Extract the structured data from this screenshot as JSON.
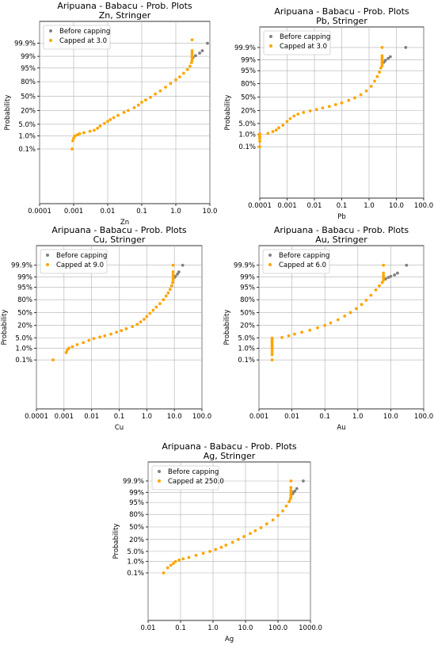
{
  "colors": {
    "before": "#808080",
    "capped": "#FFA500",
    "grid": "#b0b0b0",
    "axes": "#000000",
    "legend_border": "#cccccc"
  },
  "chart_data": [
    {
      "type": "scatter",
      "title": "Aripuana - Babacu - Prob. Plots",
      "subtitle": "Zn, Stringer",
      "xlabel": "Zn",
      "ylabel": "Probability",
      "xscale": "log",
      "xlim": [
        0.0001,
        10.0
      ],
      "xticks": [
        "0.0001",
        "0.001",
        "0.01",
        "0.1",
        "1.0",
        "10.0"
      ],
      "yscale": "probability",
      "yticks": [
        "0.1%",
        "1.0%",
        "5.0%",
        "20%",
        "50%",
        "80%",
        "95%",
        "99%",
        "99.9%"
      ],
      "grid": true,
      "legend": {
        "position": "top-left",
        "entries": [
          "Before capping",
          "Capped at 3.0"
        ]
      },
      "cap": 3.0,
      "series": [
        {
          "name": "Before capping",
          "points": [
            [
              3.2,
              98.8
            ],
            [
              3.8,
              99.1
            ],
            [
              5.0,
              99.4
            ],
            [
              6.0,
              99.6
            ],
            [
              8.5,
              99.9
            ]
          ]
        },
        {
          "name": "Capped at 3.0",
          "points": [
            [
              0.0009,
              0.1
            ],
            [
              0.00095,
              0.45
            ],
            [
              0.001,
              0.7
            ],
            [
              0.0011,
              1.0
            ],
            [
              0.0013,
              1.2
            ],
            [
              0.0015,
              1.4
            ],
            [
              0.002,
              1.6
            ],
            [
              0.003,
              2.0
            ],
            [
              0.004,
              2.3
            ],
            [
              0.005,
              3.0
            ],
            [
              0.006,
              4.0
            ],
            [
              0.008,
              5.5
            ],
            [
              0.01,
              7.0
            ],
            [
              0.012,
              8.5
            ],
            [
              0.015,
              10.5
            ],
            [
              0.02,
              13.0
            ],
            [
              0.03,
              17.0
            ],
            [
              0.04,
              20.0
            ],
            [
              0.06,
              25.0
            ],
            [
              0.08,
              30.0
            ],
            [
              0.1,
              36.0
            ],
            [
              0.13,
              41.0
            ],
            [
              0.18,
              47.0
            ],
            [
              0.25,
              55.0
            ],
            [
              0.35,
              62.0
            ],
            [
              0.5,
              70.0
            ],
            [
              0.7,
              77.0
            ],
            [
              1.0,
              83.0
            ],
            [
              1.3,
              87.0
            ],
            [
              1.7,
              91.0
            ],
            [
              2.2,
              94.0
            ],
            [
              2.6,
              96.0
            ],
            [
              2.9,
              97.5
            ],
            [
              3.0,
              98.2
            ],
            [
              3.0,
              98.8
            ],
            [
              3.0,
              99.1
            ],
            [
              3.0,
              99.4
            ],
            [
              3.0,
              99.6
            ],
            [
              3.0,
              99.95
            ]
          ]
        }
      ]
    },
    {
      "type": "scatter",
      "title": "Aripuana - Babacu - Prob. Plots",
      "subtitle": "Pb, Stringer",
      "xlabel": "Pb",
      "ylabel": "Probability",
      "xscale": "log",
      "xlim": [
        0.0001,
        100.0
      ],
      "xticks": [
        "0.0001",
        "0.001",
        "0.01",
        "0.1",
        "1.0",
        "10.0",
        "100.0"
      ],
      "yscale": "probability",
      "yticks": [
        "0.1%",
        "1.0%",
        "5.0%",
        "20%",
        "50%",
        "80%",
        "95%",
        "99%",
        "99.9%"
      ],
      "grid": true,
      "legend": {
        "position": "top-left",
        "entries": [
          "Before capping",
          "Capped at 3.0"
        ]
      },
      "cap": 3.0,
      "series": [
        {
          "name": "Before capping",
          "points": [
            [
              3.5,
              98.5
            ],
            [
              4.0,
              98.9
            ],
            [
              5.0,
              99.2
            ],
            [
              6.0,
              99.4
            ],
            [
              22.0,
              99.9
            ]
          ]
        },
        {
          "name": "Capped at 3.0",
          "points": [
            [
              0.0001,
              0.1
            ],
            [
              0.0001,
              0.3
            ],
            [
              0.0001,
              0.5
            ],
            [
              0.0001,
              0.7
            ],
            [
              0.0001,
              0.9
            ],
            [
              0.0001,
              1.1
            ],
            [
              0.0002,
              1.2
            ],
            [
              0.0003,
              1.6
            ],
            [
              0.0004,
              2.0
            ],
            [
              0.0005,
              2.8
            ],
            [
              0.0007,
              4.0
            ],
            [
              0.001,
              6.5
            ],
            [
              0.0013,
              9.0
            ],
            [
              0.0018,
              12.0
            ],
            [
              0.0025,
              14.5
            ],
            [
              0.004,
              17.0
            ],
            [
              0.007,
              19.5
            ],
            [
              0.012,
              22.0
            ],
            [
              0.02,
              25.0
            ],
            [
              0.035,
              28.0
            ],
            [
              0.06,
              32.0
            ],
            [
              0.1,
              36.0
            ],
            [
              0.18,
              42.0
            ],
            [
              0.3,
              48.0
            ],
            [
              0.5,
              56.0
            ],
            [
              0.8,
              65.0
            ],
            [
              1.2,
              75.0
            ],
            [
              1.6,
              84.0
            ],
            [
              2.0,
              90.0
            ],
            [
              2.4,
              94.0
            ],
            [
              2.7,
              96.5
            ],
            [
              3.0,
              97.5
            ],
            [
              3.0,
              98.2
            ],
            [
              3.0,
              98.6
            ],
            [
              3.0,
              99.0
            ],
            [
              3.0,
              99.3
            ],
            [
              3.0,
              99.5
            ],
            [
              3.0,
              99.9
            ]
          ]
        }
      ]
    },
    {
      "type": "scatter",
      "title": "Aripuana - Babacu - Prob. Plots",
      "subtitle": "Cu, Stringer",
      "xlabel": "Cu",
      "ylabel": "Probability",
      "xscale": "log",
      "xlim": [
        0.0001,
        100.0
      ],
      "xticks": [
        "0.0001",
        "0.001",
        "0.01",
        "0.1",
        "1.0",
        "10.0",
        "100.0"
      ],
      "yscale": "probability",
      "yticks": [
        "0.1%",
        "1.0%",
        "5.0%",
        "20%",
        "50%",
        "80%",
        "95%",
        "99%",
        "99.9%"
      ],
      "grid": true,
      "legend": {
        "position": "top-left",
        "entries": [
          "Before capping",
          "Capped at 9.0"
        ]
      },
      "cap": 9.0,
      "series": [
        {
          "name": "Before capping",
          "points": [
            [
              10.0,
              98.9
            ],
            [
              11.0,
              99.1
            ],
            [
              13.0,
              99.4
            ],
            [
              14.5,
              99.6
            ],
            [
              20.0,
              99.9
            ]
          ]
        },
        {
          "name": "Capped at 9.0",
          "points": [
            [
              0.0004,
              0.1
            ],
            [
              0.0012,
              0.45
            ],
            [
              0.0013,
              0.7
            ],
            [
              0.0015,
              1.0
            ],
            [
              0.002,
              1.3
            ],
            [
              0.003,
              1.8
            ],
            [
              0.005,
              2.5
            ],
            [
              0.008,
              3.5
            ],
            [
              0.012,
              4.5
            ],
            [
              0.02,
              5.5
            ],
            [
              0.03,
              6.5
            ],
            [
              0.05,
              8.0
            ],
            [
              0.08,
              10.0
            ],
            [
              0.12,
              12.0
            ],
            [
              0.18,
              14.5
            ],
            [
              0.3,
              18.0
            ],
            [
              0.45,
              22.0
            ],
            [
              0.6,
              27.0
            ],
            [
              0.8,
              33.0
            ],
            [
              1.0,
              40.0
            ],
            [
              1.3,
              48.0
            ],
            [
              1.7,
              56.0
            ],
            [
              2.2,
              64.0
            ],
            [
              3.0,
              72.0
            ],
            [
              4.0,
              80.0
            ],
            [
              5.0,
              86.0
            ],
            [
              6.0,
              90.0
            ],
            [
              7.0,
              93.5
            ],
            [
              8.0,
              96.0
            ],
            [
              8.7,
              97.5
            ],
            [
              9.0,
              98.4
            ],
            [
              9.0,
              98.9
            ],
            [
              9.0,
              99.3
            ],
            [
              9.0,
              99.6
            ],
            [
              9.0,
              99.9
            ]
          ]
        }
      ]
    },
    {
      "type": "scatter",
      "title": "Aripuana - Babacu - Prob. Plots",
      "subtitle": "Au, Stringer",
      "xlabel": "Au",
      "ylabel": "Probability",
      "xscale": "log",
      "xlim": [
        0.001,
        100.0
      ],
      "xticks": [
        "0.001",
        "0.01",
        "0.1",
        "1.0",
        "10.0",
        "100.0"
      ],
      "yscale": "probability",
      "yticks": [
        "0.1%",
        "1.0%",
        "5.0%",
        "20%",
        "50%",
        "80%",
        "95%",
        "99%",
        "99.9%"
      ],
      "grid": true,
      "legend": {
        "position": "top-left",
        "entries": [
          "Before capping",
          "Capped at 6.0"
        ]
      },
      "cap": 6.0,
      "series": [
        {
          "name": "Before capping",
          "points": [
            [
              7.0,
              98.6
            ],
            [
              8.5,
              98.9
            ],
            [
              10.0,
              99.1
            ],
            [
              13.0,
              99.3
            ],
            [
              16.0,
              99.5
            ],
            [
              30.0,
              99.9
            ]
          ]
        },
        {
          "name": "Capped at 6.0",
          "points": [
            [
              0.0025,
              0.1
            ],
            [
              0.0025,
              0.3
            ],
            [
              0.0025,
              0.5
            ],
            [
              0.0025,
              0.8
            ],
            [
              0.0025,
              1.1
            ],
            [
              0.0025,
              1.5
            ],
            [
              0.0025,
              2.0
            ],
            [
              0.0025,
              2.6
            ],
            [
              0.0025,
              3.2
            ],
            [
              0.0025,
              4.0
            ],
            [
              0.0025,
              4.8
            ],
            [
              0.005,
              5.2
            ],
            [
              0.008,
              6.5
            ],
            [
              0.012,
              8.0
            ],
            [
              0.02,
              10.0
            ],
            [
              0.035,
              12.5
            ],
            [
              0.06,
              16.0
            ],
            [
              0.1,
              20.0
            ],
            [
              0.15,
              25.0
            ],
            [
              0.25,
              32.0
            ],
            [
              0.4,
              41.0
            ],
            [
              0.6,
              50.0
            ],
            [
              0.9,
              60.0
            ],
            [
              1.3,
              70.0
            ],
            [
              1.8,
              79.0
            ],
            [
              2.5,
              87.0
            ],
            [
              3.5,
              93.0
            ],
            [
              4.5,
              96.0
            ],
            [
              5.5,
              97.5
            ],
            [
              6.0,
              98.3
            ],
            [
              6.0,
              98.8
            ],
            [
              6.0,
              99.2
            ],
            [
              6.0,
              99.5
            ],
            [
              6.0,
              99.9
            ]
          ]
        }
      ]
    },
    {
      "type": "scatter",
      "title": "Aripuana - Babacu - Prob. Plots",
      "subtitle": "Ag, Stringer",
      "xlabel": "Ag",
      "ylabel": "Probability",
      "xscale": "log",
      "xlim": [
        0.01,
        1000.0
      ],
      "xticks": [
        "0.01",
        "0.1",
        "1.0",
        "10.0",
        "100.0",
        "1000.0"
      ],
      "yscale": "probability",
      "yticks": [
        "0.1%",
        "1.0%",
        "5.0%",
        "20%",
        "50%",
        "80%",
        "95%",
        "99%",
        "99.9%"
      ],
      "grid": true,
      "legend": {
        "position": "top-left",
        "entries": [
          "Before capping",
          "Capped at 250.0"
        ]
      },
      "cap": 250.0,
      "series": [
        {
          "name": "Before capping",
          "points": [
            [
              280.0,
              98.7
            ],
            [
              300.0,
              99.0
            ],
            [
              330.0,
              99.2
            ],
            [
              380.0,
              99.5
            ],
            [
              600.0,
              99.9
            ]
          ]
        },
        {
          "name": "Capped at 250.0",
          "points": [
            [
              0.03,
              0.1
            ],
            [
              0.04,
              0.3
            ],
            [
              0.05,
              0.5
            ],
            [
              0.06,
              0.7
            ],
            [
              0.07,
              1.0
            ],
            [
              0.09,
              1.3
            ],
            [
              0.12,
              1.6
            ],
            [
              0.18,
              2.0
            ],
            [
              0.3,
              2.8
            ],
            [
              0.5,
              3.8
            ],
            [
              0.8,
              5.0
            ],
            [
              1.2,
              6.5
            ],
            [
              1.8,
              8.5
            ],
            [
              2.5,
              11.0
            ],
            [
              4.0,
              15.0
            ],
            [
              6.0,
              20.0
            ],
            [
              9.0,
              26.0
            ],
            [
              14.0,
              33.0
            ],
            [
              20.0,
              40.0
            ],
            [
              30.0,
              48.0
            ],
            [
              45.0,
              58.0
            ],
            [
              70.0,
              68.0
            ],
            [
              100.0,
              78.0
            ],
            [
              140.0,
              86.0
            ],
            [
              180.0,
              92.0
            ],
            [
              220.0,
              95.5
            ],
            [
              240.0,
              97.0
            ],
            [
              250.0,
              97.8
            ],
            [
              250.0,
              98.4
            ],
            [
              250.0,
              98.9
            ],
            [
              250.0,
              99.3
            ],
            [
              250.0,
              99.6
            ],
            [
              250.0,
              99.9
            ]
          ]
        }
      ]
    }
  ]
}
